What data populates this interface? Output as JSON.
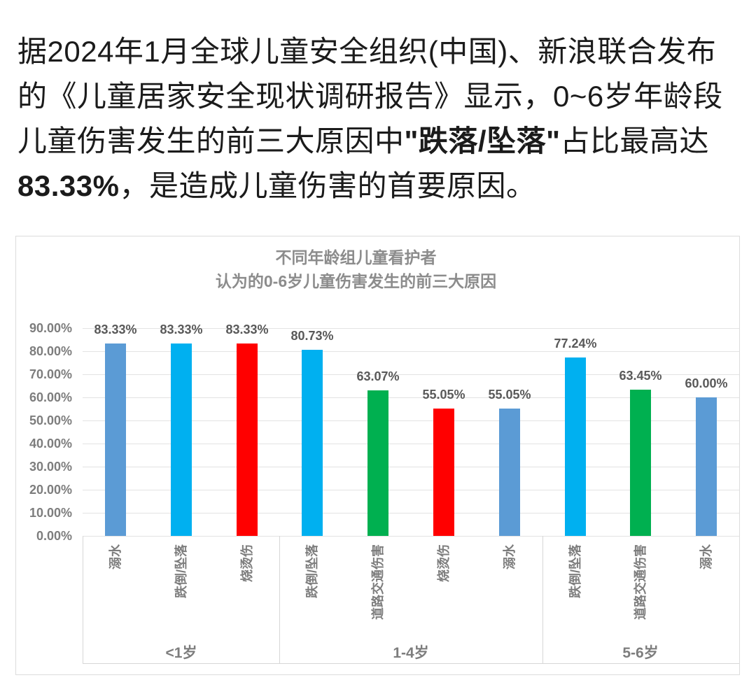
{
  "intro": {
    "lines": [
      {
        "segments": [
          {
            "text": "据2024年1月全球儿童安全组织(中国)、新浪联合发布",
            "bold": false
          }
        ]
      },
      {
        "segments": [
          {
            "text": "的《儿童居家安全现状调研报告》显示，0~6岁年龄段",
            "bold": false
          }
        ]
      },
      {
        "segments": [
          {
            "text": "儿童伤害发生的前三大原因中",
            "bold": false
          },
          {
            "text": "\"跌落/坠落\"",
            "bold": true
          },
          {
            "text": "占比最高达",
            "bold": false
          }
        ]
      },
      {
        "segments": [
          {
            "text": "83.33%",
            "bold": true
          },
          {
            "text": "，是造成儿童伤害的首要原因。",
            "bold": false
          }
        ]
      }
    ]
  },
  "chart_data": {
    "type": "bar",
    "title": "不同年龄组儿童看护者 认为的0-6岁儿童伤害发生的前三大原因",
    "title_lines": [
      "不同年龄组儿童看护者",
      "认为的0-6岁儿童伤害发生的前三大原因"
    ],
    "xlabel": "",
    "ylabel": "",
    "ylim": [
      0,
      90
    ],
    "y_tick_step": 10,
    "y_ticks": [
      "0.00%",
      "10.00%",
      "20.00%",
      "30.00%",
      "40.00%",
      "50.00%",
      "60.00%",
      "70.00%",
      "80.00%",
      "90.00%"
    ],
    "grid": true,
    "legend": "none",
    "colors": {
      "drowning": "#5B9BD5",
      "falls": "#00B0F0",
      "burns": "#FF0000",
      "road_traffic": "#00B050"
    },
    "groups": [
      {
        "label": "<1岁",
        "bars": [
          {
            "category": "溺水",
            "value": 83.33,
            "label": "83.33%",
            "color": "#5B9BD5"
          },
          {
            "category": "跌倒/坠落",
            "value": 83.33,
            "label": "83.33%",
            "color": "#00B0F0"
          },
          {
            "category": "烧烫伤",
            "value": 83.33,
            "label": "83.33%",
            "color": "#FF0000"
          }
        ]
      },
      {
        "label": "1-4岁",
        "bars": [
          {
            "category": "跌倒/坠落",
            "value": 80.73,
            "label": "80.73%",
            "color": "#00B0F0"
          },
          {
            "category": "道路交通伤害",
            "value": 63.07,
            "label": "63.07%",
            "color": "#00B050"
          },
          {
            "category": "烧烫伤",
            "value": 55.05,
            "label": "55.05%",
            "color": "#FF0000"
          },
          {
            "category": "溺水",
            "value": 55.05,
            "label": "55.05%",
            "color": "#5B9BD5"
          }
        ]
      },
      {
        "label": "5-6岁",
        "bars": [
          {
            "category": "跌倒/坠落",
            "value": 77.24,
            "label": "77.24%",
            "color": "#00B0F0"
          },
          {
            "category": "道路交通伤害",
            "value": 63.45,
            "label": "63.45%",
            "color": "#00B050"
          },
          {
            "category": "溺水",
            "value": 60.0,
            "label": "60.00%",
            "color": "#5B9BD5"
          }
        ]
      }
    ]
  }
}
